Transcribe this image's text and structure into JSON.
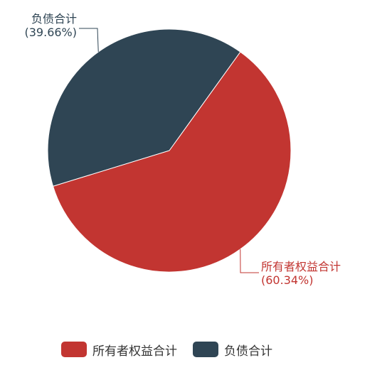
{
  "chart_data": {
    "type": "pie",
    "title": "",
    "legend_position": "bottom",
    "slices": [
      {
        "name": "所有者权益合计",
        "value": 60.34,
        "percent_label": "(60.34%)",
        "color": "#c23531"
      },
      {
        "name": "负债合计",
        "value": 39.66,
        "percent_label": "(39.66%)",
        "color": "#2f4554"
      }
    ]
  },
  "legend": {
    "items": [
      {
        "label": "所有者权益合计",
        "color": "#c23531"
      },
      {
        "label": "负债合计",
        "color": "#2f4554"
      }
    ]
  }
}
